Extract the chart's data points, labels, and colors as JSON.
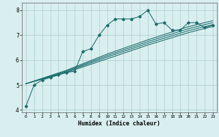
{
  "xlabel": "Humidex (Indice chaleur)",
  "xlim": [
    -0.5,
    23.5
  ],
  "ylim": [
    3.9,
    8.3
  ],
  "xticks": [
    0,
    1,
    2,
    3,
    4,
    5,
    6,
    7,
    8,
    9,
    10,
    11,
    12,
    13,
    14,
    15,
    16,
    17,
    18,
    19,
    20,
    21,
    22,
    23
  ],
  "yticks": [
    4,
    5,
    6,
    7,
    8
  ],
  "bg_color": "#d9eeee",
  "grid_color": "#a8cccc",
  "line_color": "#1e6e6e",
  "lines": [
    {
      "x": [
        0,
        1,
        2,
        3,
        4,
        5,
        6,
        7,
        8,
        9,
        10,
        11,
        12,
        13,
        14,
        15,
        16,
        17,
        18,
        19,
        20,
        21,
        22,
        23
      ],
      "y": [
        4.15,
        5.0,
        5.2,
        5.3,
        5.4,
        5.5,
        5.55,
        6.35,
        6.45,
        7.0,
        7.4,
        7.65,
        7.65,
        7.65,
        7.75,
        8.0,
        7.45,
        7.5,
        7.2,
        7.2,
        7.5,
        7.5,
        7.3,
        7.4
      ],
      "marker": "D",
      "markersize": 2.0,
      "linewidth": 0.8
    },
    {
      "x": [
        0,
        5,
        10,
        15,
        20,
        23
      ],
      "y": [
        5.05,
        5.5,
        6.05,
        6.6,
        7.1,
        7.35
      ],
      "marker": null,
      "markersize": 0,
      "linewidth": 0.8
    },
    {
      "x": [
        0,
        5,
        10,
        15,
        20,
        23
      ],
      "y": [
        5.05,
        5.53,
        6.12,
        6.67,
        7.18,
        7.42
      ],
      "marker": null,
      "markersize": 0,
      "linewidth": 0.8
    },
    {
      "x": [
        0,
        5,
        10,
        15,
        20,
        23
      ],
      "y": [
        5.05,
        5.56,
        6.18,
        6.74,
        7.26,
        7.5
      ],
      "marker": null,
      "markersize": 0,
      "linewidth": 0.8
    },
    {
      "x": [
        0,
        5,
        10,
        15,
        20,
        23
      ],
      "y": [
        5.05,
        5.59,
        6.24,
        6.81,
        7.34,
        7.58
      ],
      "marker": null,
      "markersize": 0,
      "linewidth": 0.8
    }
  ]
}
